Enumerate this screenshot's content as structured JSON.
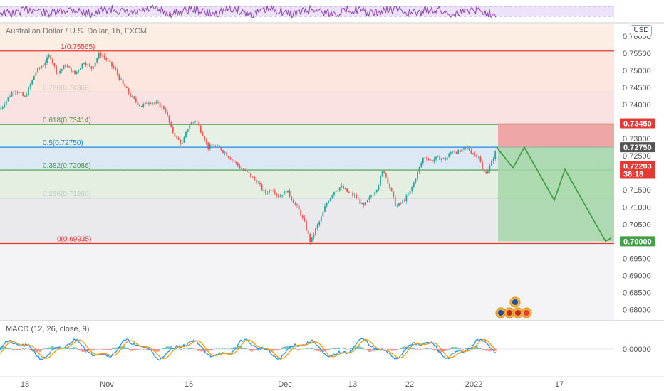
{
  "header": {
    "symbol_title": "Australian Dollar / U.S. Dollar, 1h, FXCM",
    "currency_button": "USD",
    "macd_label": "MACD (12, 26, close, 9)"
  },
  "chart_data": [
    {
      "type": "candlestick",
      "title": "Australian Dollar / U.S. Dollar, 1h, FXCM",
      "ylim": [
        0.677,
        0.7635
      ],
      "y_ticks": [
        "0.76000",
        "0.75500",
        "0.75000",
        "0.74500",
        "0.74000",
        "0.73500",
        "0.73000",
        "0.72500",
        "0.72000",
        "0.71500",
        "0.71000",
        "0.70500",
        "0.70000",
        "0.69500",
        "0.69000",
        "0.68500",
        "0.68000"
      ],
      "x_ticks": [
        "18",
        "Nov",
        "15",
        "Dec",
        "13",
        "22",
        "2022",
        "17"
      ],
      "price_path": [
        [
          0,
          0.7385
        ],
        [
          8,
          0.741
        ],
        [
          20,
          0.7445
        ],
        [
          35,
          0.742
        ],
        [
          50,
          0.7495
        ],
        [
          62,
          0.752
        ],
        [
          70,
          0.7545
        ],
        [
          80,
          0.749
        ],
        [
          92,
          0.7515
        ],
        [
          105,
          0.749
        ],
        [
          118,
          0.7525
        ],
        [
          128,
          0.7505
        ],
        [
          140,
          0.755
        ],
        [
          150,
          0.753
        ],
        [
          162,
          0.75
        ],
        [
          172,
          0.746
        ],
        [
          185,
          0.742
        ],
        [
          198,
          0.7395
        ],
        [
          210,
          0.741
        ],
        [
          222,
          0.74
        ],
        [
          232,
          0.7385
        ],
        [
          240,
          0.733
        ],
        [
          248,
          0.73
        ],
        [
          256,
          0.7285
        ],
        [
          265,
          0.734
        ],
        [
          275,
          0.7355
        ],
        [
          285,
          0.731
        ],
        [
          292,
          0.7275
        ],
        [
          300,
          0.728
        ],
        [
          310,
          0.727
        ],
        [
          318,
          0.7255
        ],
        [
          330,
          0.723
        ],
        [
          340,
          0.721
        ],
        [
          350,
          0.7195
        ],
        [
          362,
          0.717
        ],
        [
          372,
          0.714
        ],
        [
          382,
          0.7155
        ],
        [
          392,
          0.713
        ],
        [
          402,
          0.715
        ],
        [
          412,
          0.7115
        ],
        [
          420,
          0.709
        ],
        [
          428,
          0.705
        ],
        [
          436,
          0.6995
        ],
        [
          442,
          0.703
        ],
        [
          450,
          0.7065
        ],
        [
          458,
          0.711
        ],
        [
          468,
          0.7145
        ],
        [
          478,
          0.716
        ],
        [
          490,
          0.714
        ],
        [
          500,
          0.713
        ],
        [
          510,
          0.71
        ],
        [
          520,
          0.713
        ],
        [
          530,
          0.716
        ],
        [
          538,
          0.721
        ],
        [
          546,
          0.7165
        ],
        [
          556,
          0.71
        ],
        [
          565,
          0.7115
        ],
        [
          575,
          0.714
        ],
        [
          585,
          0.7195
        ],
        [
          595,
          0.725
        ],
        [
          605,
          0.7235
        ],
        [
          615,
          0.7245
        ],
        [
          625,
          0.724
        ],
        [
          635,
          0.7265
        ],
        [
          645,
          0.726
        ],
        [
          655,
          0.7275
        ],
        [
          665,
          0.7255
        ],
        [
          672,
          0.725
        ],
        [
          678,
          0.72
        ],
        [
          684,
          0.7205
        ],
        [
          690,
          0.723
        ],
        [
          697,
          0.727
        ]
      ],
      "fibonacci": [
        {
          "label": "1(0.75565)",
          "value": 0.75565,
          "color": "#e53935"
        },
        {
          "label": "0.786(0.74368)",
          "value": 0.74368,
          "color": "#c9c9c9"
        },
        {
          "label": "0.618(0.73414)",
          "value": 0.73414,
          "color": "#43a047"
        },
        {
          "label": "0.5(0.72750)",
          "value": 0.7275,
          "color": "#1e88e5"
        },
        {
          "label": "0.382(0.72086)",
          "value": 0.72086,
          "color": "#43a047"
        },
        {
          "label": "0.236(0.71260)",
          "value": 0.7126,
          "color": "#c9c9c9"
        },
        {
          "label": "0(0.69935)",
          "value": 0.69935,
          "color": "#e53935"
        }
      ],
      "position": {
        "entry": 0.7275,
        "stop": 0.7345,
        "target": 0.7
      },
      "projection": [
        [
          697,
          0.7275
        ],
        [
          720,
          0.7215
        ],
        [
          736,
          0.7275
        ],
        [
          778,
          0.712
        ],
        [
          793,
          0.721
        ],
        [
          850,
          0.7
        ],
        [
          858,
          0.701
        ]
      ],
      "price_tags": [
        {
          "text": "0.73450",
          "value": 0.7345,
          "color": "#e53935"
        },
        {
          "text": "0.72750",
          "value": 0.7275,
          "color": "#555555"
        },
        {
          "text": "0.72203",
          "value": 0.72203,
          "color": "#e53935"
        },
        {
          "text": "38:18",
          "value": 0.72203,
          "color": "#e53935"
        },
        {
          "text": "0.70000",
          "value": 0.7,
          "color": "#43a047"
        }
      ]
    },
    {
      "type": "line",
      "title": "MACD (12, 26, close, 9)",
      "y_ticks": [
        "0.00000"
      ],
      "series": [
        {
          "color": "#2196f3"
        },
        {
          "color": "#ff9800"
        }
      ]
    }
  ]
}
